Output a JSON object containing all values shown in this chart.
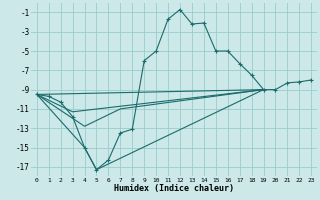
{
  "xlabel": "Humidex (Indice chaleur)",
  "bg_color": "#cce8e8",
  "grid_color": "#99cccc",
  "line_color": "#1a6b6b",
  "xlim": [
    -0.5,
    23.5
  ],
  "ylim": [
    -18.0,
    -0.0
  ],
  "xticks": [
    0,
    1,
    2,
    3,
    4,
    5,
    6,
    7,
    8,
    9,
    10,
    11,
    12,
    13,
    14,
    15,
    16,
    17,
    18,
    19,
    20,
    21,
    22,
    23
  ],
  "yticks": [
    -17,
    -15,
    -13,
    -11,
    -9,
    -7,
    -5,
    -3,
    -1
  ],
  "main_x": [
    0,
    1,
    2,
    3,
    4,
    5,
    6,
    7,
    8,
    9,
    10,
    11,
    12,
    13,
    14,
    15,
    16,
    17,
    18,
    19,
    20,
    21,
    22,
    23
  ],
  "main_y": [
    -9.5,
    -9.7,
    -10.3,
    -11.8,
    -15.0,
    -17.3,
    -16.3,
    -13.5,
    -13.1,
    -6.0,
    -5.0,
    -1.7,
    -0.7,
    -2.2,
    -2.1,
    -5.0,
    -5.0,
    -6.3,
    -7.5,
    -9.0,
    -9.0,
    -8.3,
    -8.2,
    -8.0
  ],
  "line2_x": [
    0,
    19
  ],
  "line2_y": [
    -9.5,
    -9.0
  ],
  "line3_x": [
    0,
    3,
    19
  ],
  "line3_y": [
    -9.5,
    -11.3,
    -9.0
  ],
  "line4_x": [
    0,
    4,
    7,
    19
  ],
  "line4_y": [
    -9.5,
    -12.8,
    -11.0,
    -9.0
  ],
  "line5_x": [
    0,
    4,
    5,
    19
  ],
  "line5_y": [
    -9.5,
    -15.0,
    -17.3,
    -9.0
  ]
}
